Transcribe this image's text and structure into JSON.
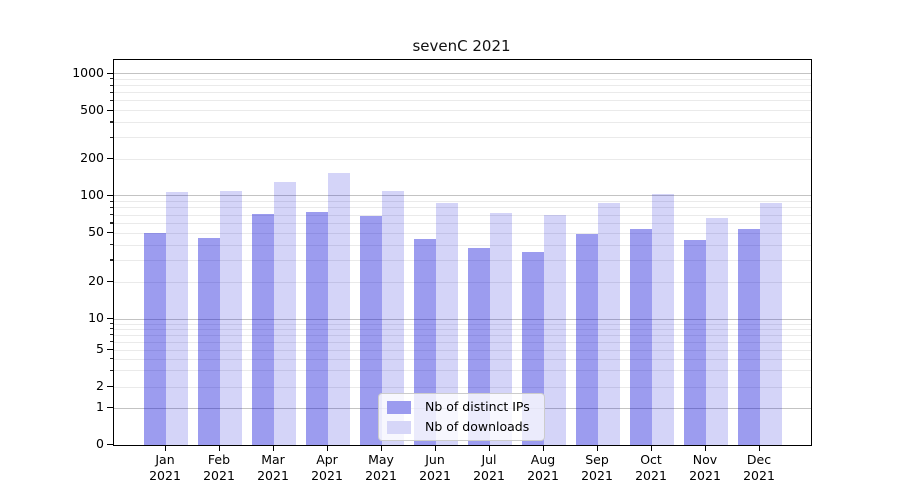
{
  "title": "sevenC 2021",
  "legend": {
    "entries": [
      {
        "label": "Nb of distinct IPs",
        "swatch_color": "#9b9bef"
      },
      {
        "label": "Nb of downloads",
        "swatch_color": "#d6d6f8"
      }
    ]
  },
  "colors": {
    "bar_dark": "rgba(0,0,215,0.39)",
    "bar_light": "rgba(0,0,215,0.17)",
    "major_grid": "#c3c3c3",
    "minor_grid": "#eaeaea",
    "spine": "#000000"
  },
  "axes": {
    "x_year_line": "2021",
    "months": [
      "Jan",
      "Feb",
      "Mar",
      "Apr",
      "May",
      "Jun",
      "Jul",
      "Aug",
      "Sep",
      "Oct",
      "Nov",
      "Dec"
    ],
    "y_tick_labels": [
      "0",
      "1",
      "2",
      "5",
      "10",
      "20",
      "50",
      "100",
      "200",
      "500",
      "1000"
    ]
  },
  "chart_data": {
    "type": "bar",
    "title": "sevenC 2021",
    "scale": "pseudo-log (log above 1, compressed linear stub to 0)",
    "categories": [
      "Jan 2021",
      "Feb 2021",
      "Mar 2021",
      "Apr 2021",
      "May 2021",
      "Jun 2021",
      "Jul 2021",
      "Aug 2021",
      "Sep 2021",
      "Oct 2021",
      "Nov 2021",
      "Dec 2021"
    ],
    "series": [
      {
        "name": "Nb of distinct IPs",
        "values": [
          50,
          46,
          71,
          74,
          69,
          45,
          38,
          35,
          49,
          54,
          44,
          54
        ]
      },
      {
        "name": "Nb of downloads",
        "values": [
          107,
          109,
          129,
          155,
          110,
          88,
          73,
          70,
          88,
          103,
          66,
          87
        ]
      }
    ],
    "y_ticks": [
      0,
      1,
      2,
      5,
      10,
      20,
      50,
      100,
      200,
      500,
      1000
    ],
    "ylim": [
      0,
      1300
    ],
    "xlabel": "",
    "ylabel": "",
    "grid": "horizontal, major and minor",
    "legend_position": "lower center"
  }
}
